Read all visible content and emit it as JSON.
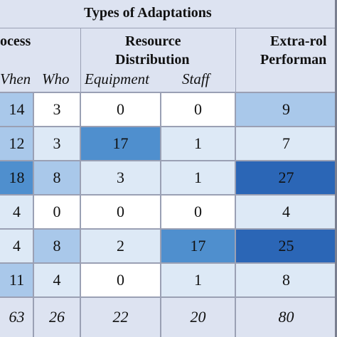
{
  "table": {
    "title": "Types of Adaptations",
    "groups": {
      "process": "ocess",
      "resource_line1": "Resource",
      "resource_line2": "Distribution",
      "extra_line1": "Extra-rol",
      "extra_line2": "Performan"
    },
    "subheaders": {
      "when": "Vhen",
      "who": "Who",
      "equipment": "Equipment",
      "staff": "Staff"
    },
    "rows": [
      {
        "when": "14",
        "who": "3",
        "equipment": "0",
        "staff": "0",
        "extra": "9"
      },
      {
        "when": "12",
        "who": "3",
        "equipment": "17",
        "staff": "1",
        "extra": "7"
      },
      {
        "when": "18",
        "who": "8",
        "equipment": "3",
        "staff": "1",
        "extra": "27"
      },
      {
        "when": "4",
        "who": "0",
        "equipment": "0",
        "staff": "0",
        "extra": "4"
      },
      {
        "when": "4",
        "who": "8",
        "equipment": "2",
        "staff": "17",
        "extra": "25"
      },
      {
        "when": "11",
        "who": "4",
        "equipment": "0",
        "staff": "1",
        "extra": "8"
      }
    ],
    "totals": {
      "when": "63",
      "who": "26",
      "equipment": "22",
      "staff": "20",
      "extra": "80"
    }
  },
  "colors": {
    "header_bg": "#dde3f1",
    "white": "#ffffff",
    "lightest": "#dde9f6",
    "light": "#a9c8ea",
    "medium": "#4f8fce",
    "dark": "#2b66b6",
    "grid": "#9aa0b4"
  }
}
